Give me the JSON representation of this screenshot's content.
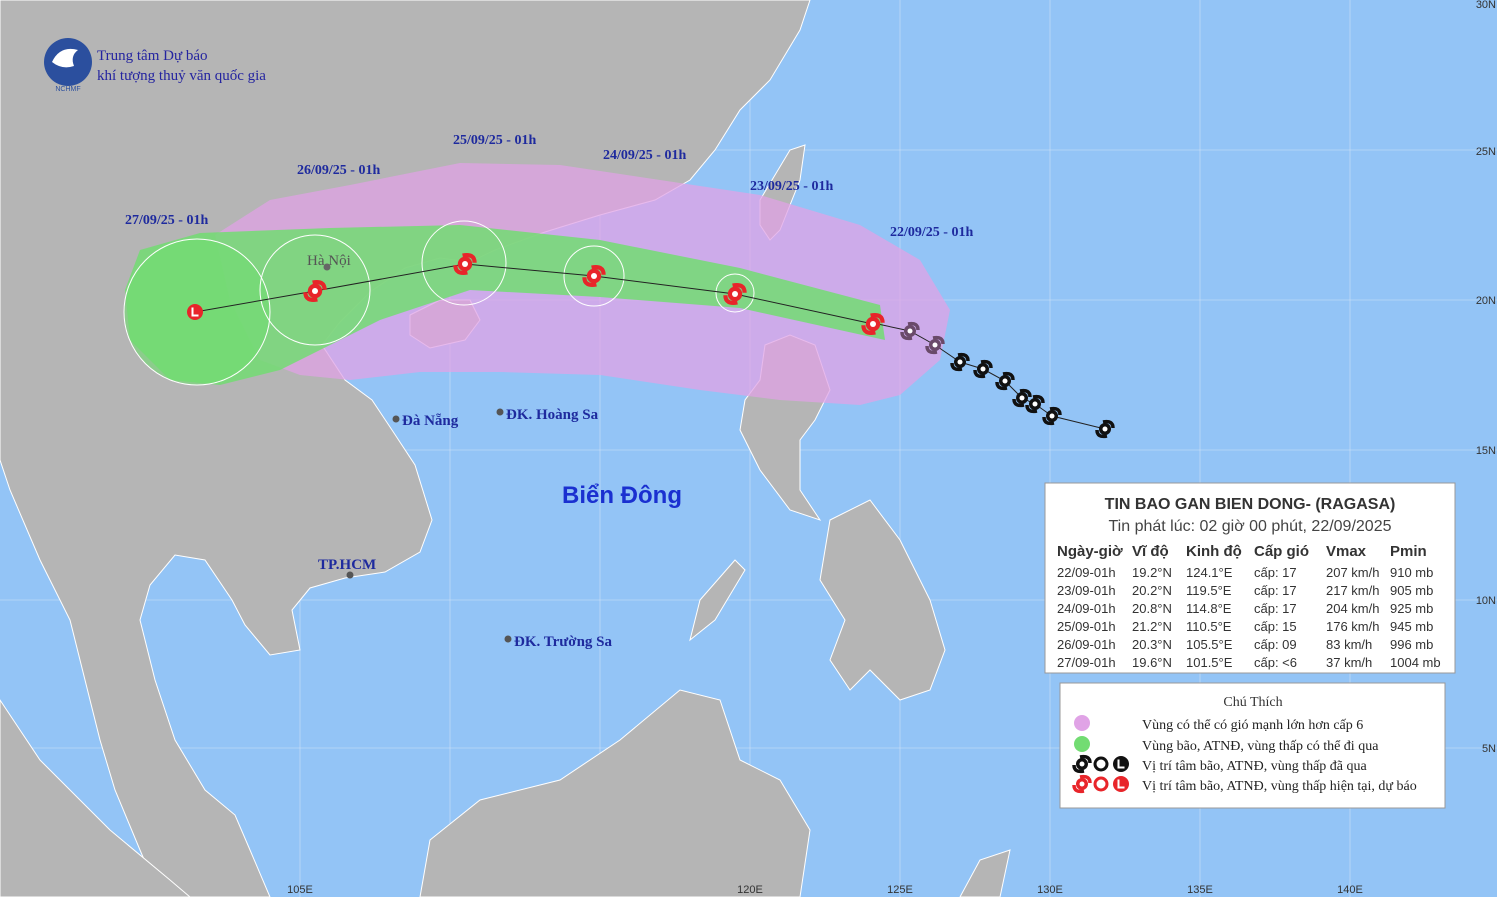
{
  "header": {
    "organization": [
      "Trung tâm Dự báo",
      "khí tượng thuỷ văn quốc gia"
    ],
    "logo_text": "NCHMF"
  },
  "track_labels": [
    "27/09/25 - 01h",
    "26/09/25 - 01h",
    "25/09/25 - 01h",
    "24/09/25 - 01h",
    "23/09/25 - 01h",
    "22/09/25 - 01h"
  ],
  "places": [
    "Hà Nội",
    "Đà Nẵng",
    "ĐK. Hoàng Sa",
    "TP.HCM",
    "ĐK. Trường Sa"
  ],
  "sea_label": "Biển Đông",
  "lat_labels": [
    "30N",
    "25N",
    "20N",
    "15N",
    "10N",
    "5N"
  ],
  "lon_labels": [
    "105E",
    "120E",
    "125E",
    "130E",
    "135E",
    "140E"
  ],
  "bulletin": {
    "title": "TIN BAO GAN BIEN DONG- (RAGASA)",
    "subtitle": "Tin phát lúc: 02 giờ 00 phút, 22/09/2025",
    "columns": [
      "Ngày-giờ",
      "Vĩ độ",
      "Kinh độ",
      "Cấp gió",
      "Vmax",
      "Pmin"
    ],
    "rows": [
      [
        "22/09-01h",
        "19.2°N",
        "124.1°E",
        "cấp: 17",
        "207 km/h",
        "910 mb"
      ],
      [
        "23/09-01h",
        "20.2°N",
        "119.5°E",
        "cấp: 17",
        "217 km/h",
        "905 mb"
      ],
      [
        "24/09-01h",
        "20.8°N",
        "114.8°E",
        "cấp: 17",
        "204 km/h",
        "925 mb"
      ],
      [
        "25/09-01h",
        "21.2°N",
        "110.5°E",
        "cấp: 15",
        "176 km/h",
        "945 mb"
      ],
      [
        "26/09-01h",
        "20.3°N",
        "105.5°E",
        "cấp: 09",
        "83 km/h",
        "996 mb"
      ],
      [
        "27/09-01h",
        "19.6°N",
        "101.5°E",
        "cấp: <6",
        "37 km/h",
        "1004 mb"
      ]
    ]
  },
  "legend": {
    "title": "Chú Thích",
    "items": [
      "Vùng có thể có gió mạnh lớn hơn cấp 6",
      "Vùng bão, ATNĐ, vùng thấp có thể đi qua",
      "Vị trí tâm bão, ATNĐ, vùng thấp đã qua",
      "Vị trí tâm bão, ATNĐ, vùng thấp hiện tại, dự báo"
    ]
  }
}
